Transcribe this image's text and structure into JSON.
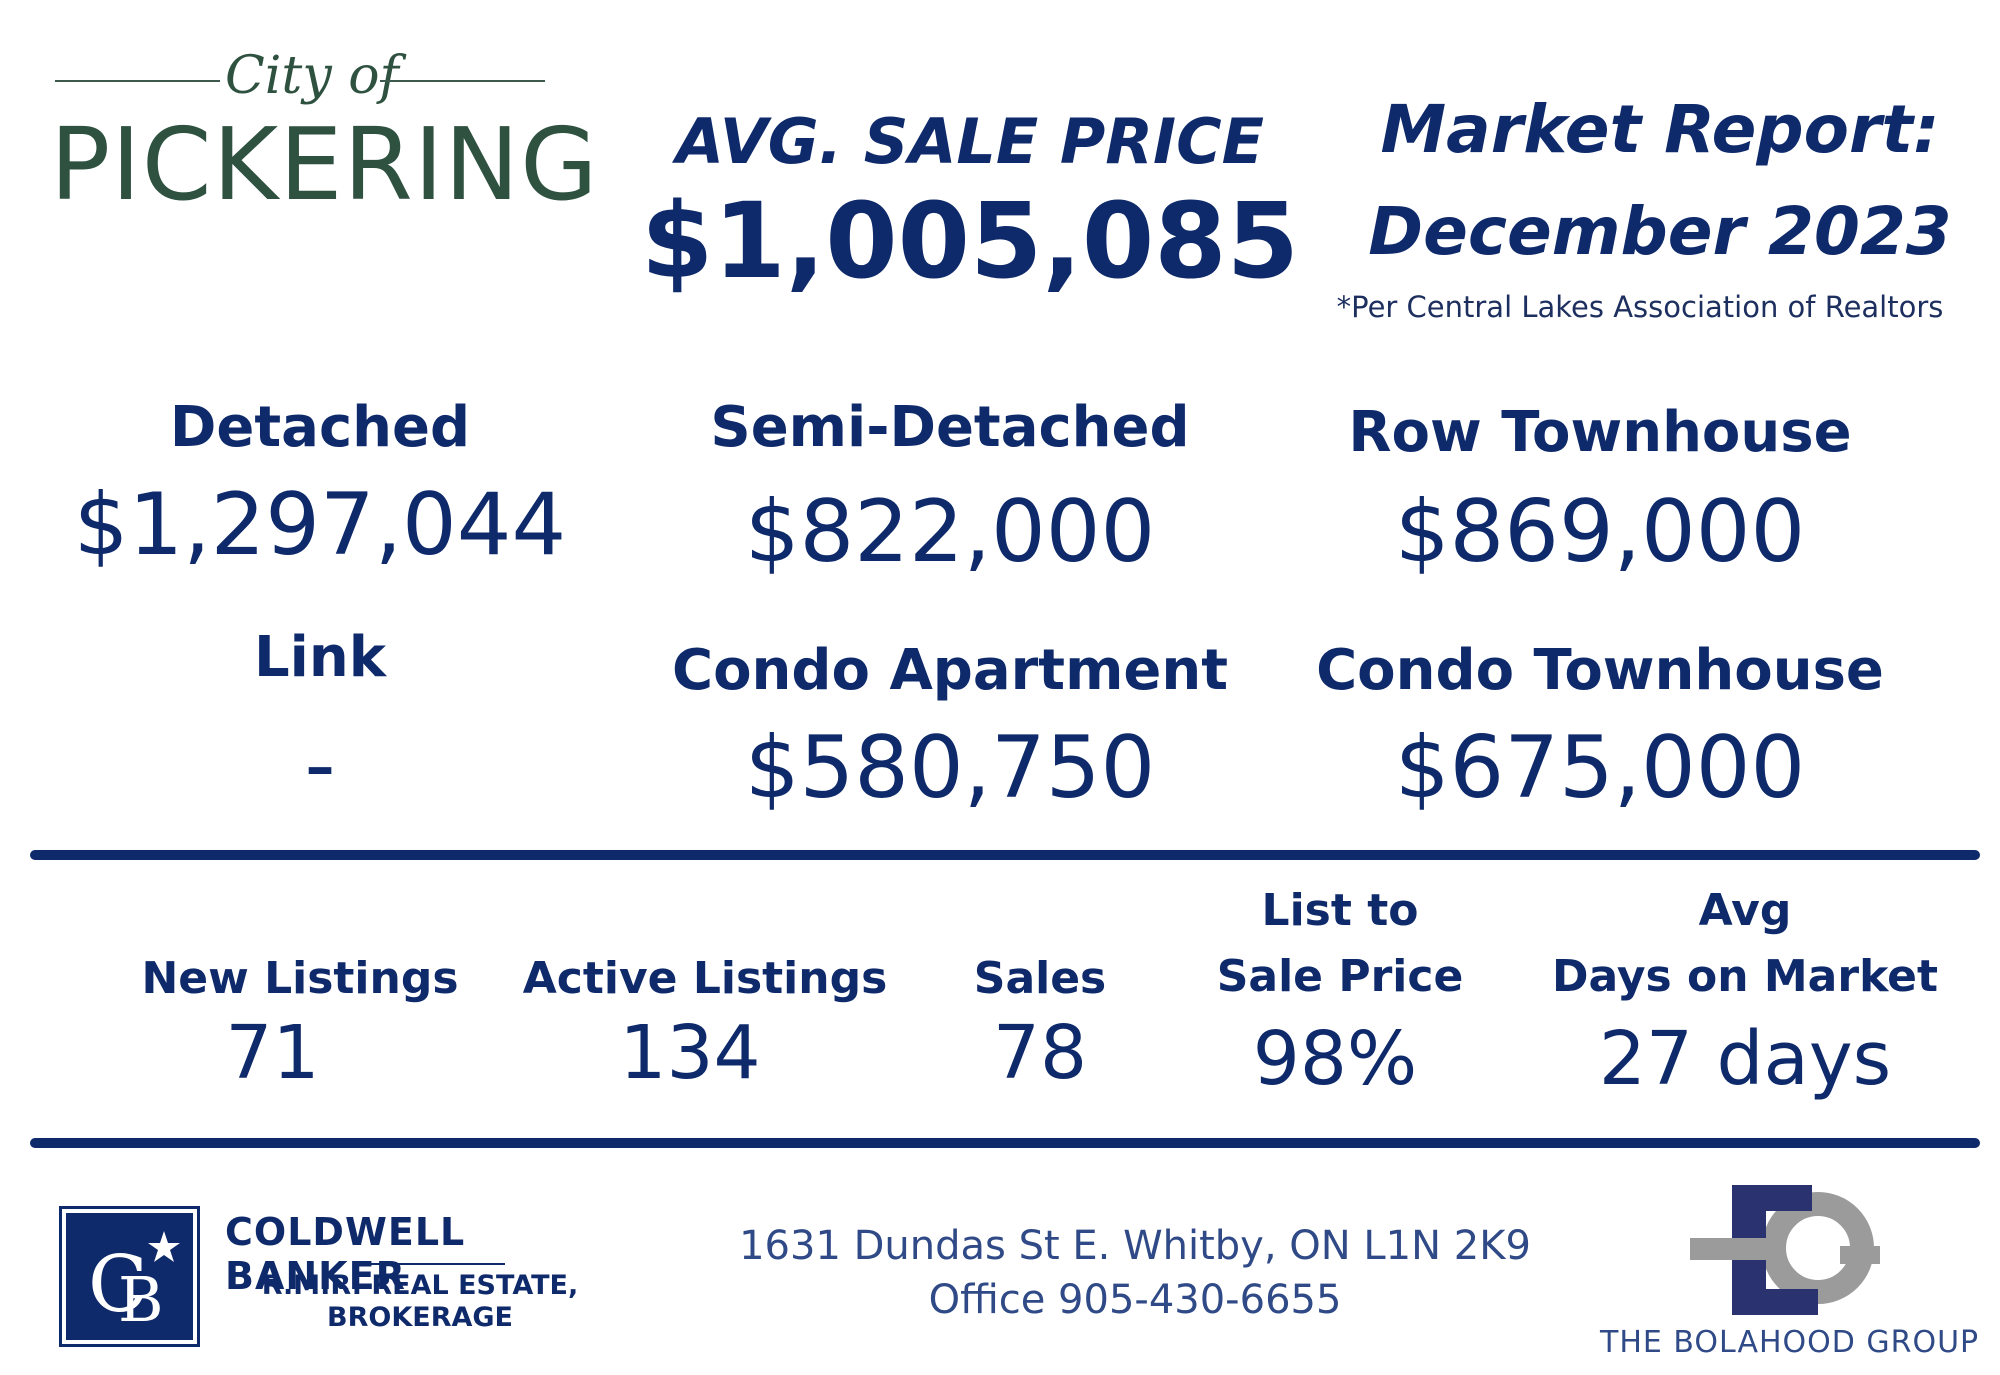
{
  "logo": {
    "script": "City of",
    "name": "PICKERING"
  },
  "header": {
    "avg_title": "AVG. SALE PRICE",
    "avg_value": "$1,005,085",
    "report_line1": "Market Report:",
    "report_line2": "December 2023",
    "source_note": "*Per Central Lakes Association of Realtors"
  },
  "types": [
    {
      "label": "Detached",
      "value": "$1,297,044"
    },
    {
      "label": "Semi-Detached",
      "value": "$822,000"
    },
    {
      "label": "Row Townhouse",
      "value": "$869,000"
    },
    {
      "label": "Link",
      "value": "-"
    },
    {
      "label": "Condo Apartment",
      "value": "$580,750"
    },
    {
      "label": "Condo Townhouse",
      "value": "$675,000"
    }
  ],
  "stats": [
    {
      "label_line1": "",
      "label_line2": "New Listings",
      "value": "71"
    },
    {
      "label_line1": "",
      "label_line2": "Active Listings",
      "value": "134"
    },
    {
      "label_line1": "",
      "label_line2": "Sales",
      "value": "78"
    },
    {
      "label_line1": "List to",
      "label_line2": "Sale Price",
      "value": "98%"
    },
    {
      "label_line1": "Avg",
      "label_line2": "Days on Market",
      "value": "27 days"
    }
  ],
  "footer": {
    "brokerage_name": "COLDWELL BANKER",
    "brokerage_line1": "R.M.R. REAL ESTATE,",
    "brokerage_line2": "BROKERAGE",
    "address": "1631 Dundas St E. Whitby, ON L1N 2K9",
    "office": "Office 905-430-6655",
    "group_name": "THE BOLAHOOD GROUP"
  },
  "colors": {
    "navy": "#0f2a6b",
    "logo_green": "#2e5140",
    "gray": "#9b9b9b"
  },
  "icons": [
    "city-of-pickering-logo",
    "coldwell-banker-logo",
    "bolahood-group-logo"
  ]
}
